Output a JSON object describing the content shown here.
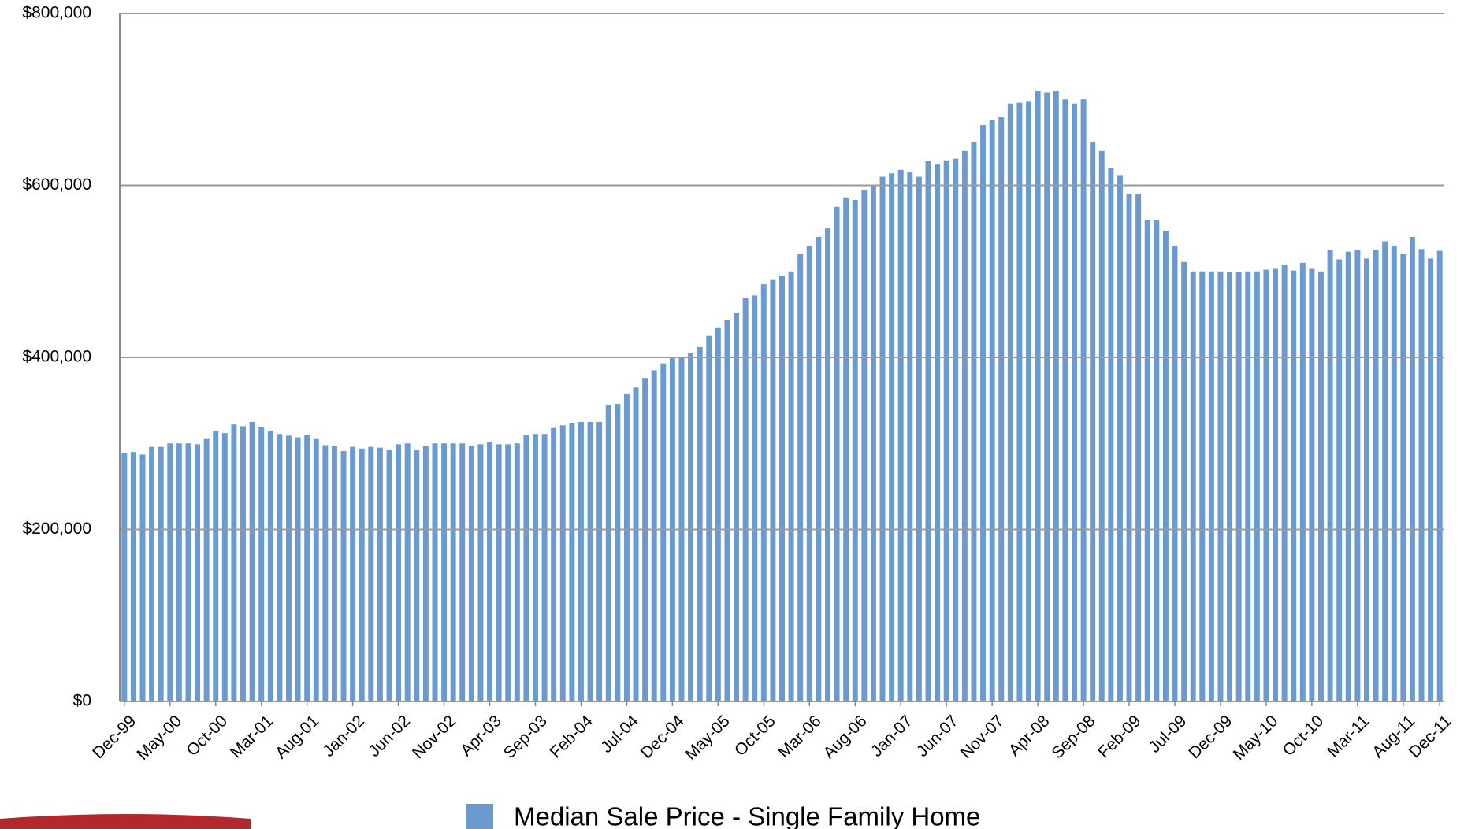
{
  "chart_data": {
    "type": "bar",
    "categories": [
      "Dec-99",
      null,
      null,
      null,
      null,
      "May-00",
      null,
      null,
      null,
      null,
      "Oct-00",
      null,
      null,
      null,
      null,
      "Mar-01",
      null,
      null,
      null,
      null,
      "Aug-01",
      null,
      null,
      null,
      null,
      "Jan-02",
      null,
      null,
      null,
      null,
      "Jun-02",
      null,
      null,
      null,
      null,
      "Nov-02",
      null,
      null,
      null,
      null,
      "Apr-03",
      null,
      null,
      null,
      null,
      "Sep-03",
      null,
      null,
      null,
      null,
      "Feb-04",
      null,
      null,
      null,
      null,
      "Jul-04",
      null,
      null,
      null,
      null,
      "Dec-04",
      null,
      null,
      null,
      null,
      "May-05",
      null,
      null,
      null,
      null,
      "Oct-05",
      null,
      null,
      null,
      null,
      "Mar-06",
      null,
      null,
      null,
      null,
      "Aug-06",
      null,
      null,
      null,
      null,
      "Jan-07",
      null,
      null,
      null,
      null,
      "Jun-07",
      null,
      null,
      null,
      null,
      "Nov-07",
      null,
      null,
      null,
      null,
      "Apr-08",
      null,
      null,
      null,
      null,
      "Sep-08",
      null,
      null,
      null,
      null,
      "Feb-09",
      null,
      null,
      null,
      null,
      "Jul-09",
      null,
      null,
      null,
      null,
      "Dec-09",
      null,
      null,
      null,
      null,
      "May-10",
      null,
      null,
      null,
      null,
      "Oct-10",
      null,
      null,
      null,
      null,
      "Mar-11",
      null,
      null,
      null,
      null,
      "Aug-11",
      null,
      null,
      null,
      "Dec-11"
    ],
    "series": [
      {
        "name": "Median Sale Price - Single Family Home",
        "color": "#6a9ad0",
        "values": [
          289000,
          290000,
          287000,
          296000,
          296000,
          300000,
          300000,
          300000,
          299000,
          306000,
          315000,
          312000,
          322000,
          320000,
          325000,
          319000,
          315000,
          311000,
          309000,
          307000,
          310000,
          306000,
          298000,
          297000,
          291000,
          296000,
          294000,
          296000,
          295000,
          292000,
          299000,
          300000,
          293000,
          297000,
          300000,
          300000,
          300000,
          300000,
          297000,
          299000,
          302000,
          299000,
          299000,
          300000,
          310000,
          311000,
          311000,
          318000,
          321000,
          324000,
          325000,
          325000,
          325000,
          345000,
          346000,
          358000,
          365000,
          376000,
          385000,
          393000,
          400000,
          400000,
          405000,
          412000,
          425000,
          435000,
          443000,
          452000,
          469000,
          472000,
          485000,
          490000,
          495000,
          500000,
          520000,
          530000,
          540000,
          550000,
          575000,
          586000,
          583000,
          595000,
          600000,
          610000,
          614000,
          618000,
          615000,
          610000,
          628000,
          625000,
          629000,
          631000,
          640000,
          650000,
          670000,
          676000,
          680000,
          695000,
          696000,
          698000,
          710000,
          708000,
          710000,
          700000,
          695000,
          700000,
          650000,
          640000,
          620000,
          612000,
          590000,
          590000,
          560000,
          560000,
          547000,
          530000,
          511000,
          500000,
          500000,
          500000,
          500000,
          499000,
          499000,
          500000,
          500000,
          502000,
          503000,
          508000,
          501000,
          510000,
          503000,
          500000,
          525000,
          514000,
          523000,
          525000,
          515000,
          525000,
          535000,
          530000,
          520000,
          540000,
          526000,
          515000,
          524000
        ]
      }
    ],
    "ylim": [
      0,
      800000
    ],
    "yticks": [
      {
        "value": 0,
        "label": "$0"
      },
      {
        "value": 200000,
        "label": "$200,000"
      },
      {
        "value": 400000,
        "label": "$400,000"
      },
      {
        "value": 600000,
        "label": "$600,000"
      },
      {
        "value": 800000,
        "label": "$800,000"
      }
    ],
    "grid": true
  }
}
